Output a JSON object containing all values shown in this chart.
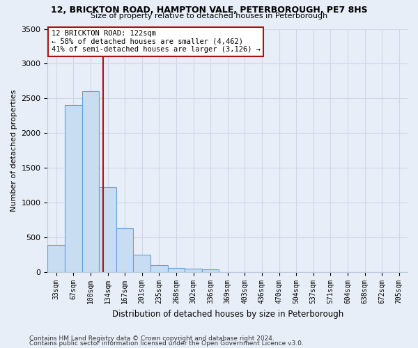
{
  "title1": "12, BRICKTON ROAD, HAMPTON VALE, PETERBOROUGH, PE7 8HS",
  "title2": "Size of property relative to detached houses in Peterborough",
  "xlabel": "Distribution of detached houses by size in Peterborough",
  "ylabel": "Number of detached properties",
  "footer1": "Contains HM Land Registry data © Crown copyright and database right 2024.",
  "footer2": "Contains public sector information licensed under the Open Government Licence v3.0.",
  "categories": [
    "33sqm",
    "67sqm",
    "100sqm",
    "134sqm",
    "167sqm",
    "201sqm",
    "235sqm",
    "268sqm",
    "302sqm",
    "336sqm",
    "369sqm",
    "403sqm",
    "436sqm",
    "470sqm",
    "504sqm",
    "537sqm",
    "571sqm",
    "604sqm",
    "638sqm",
    "672sqm",
    "705sqm"
  ],
  "values": [
    390,
    2400,
    2600,
    1220,
    630,
    250,
    105,
    65,
    55,
    45,
    0,
    0,
    0,
    0,
    0,
    0,
    0,
    0,
    0,
    0,
    0
  ],
  "bar_color": "#c9ddf2",
  "bar_edge_color": "#6a9fd4",
  "vline_x": 2.72,
  "vline_color": "#aa1111",
  "annotation_line1": "12 BRICKTON ROAD: 122sqm",
  "annotation_line2": "← 58% of detached houses are smaller (4,462)",
  "annotation_line3": "41% of semi-detached houses are larger (3,126) →",
  "annotation_box_color": "#ffffff",
  "annotation_box_edge": "#aa1111",
  "ylim": [
    0,
    3500
  ],
  "yticks": [
    0,
    500,
    1000,
    1500,
    2000,
    2500,
    3000,
    3500
  ],
  "grid_color": "#d0d8e8",
  "bg_color": "#e8eef7",
  "title_fontsize": 9,
  "subtitle_fontsize": 8
}
